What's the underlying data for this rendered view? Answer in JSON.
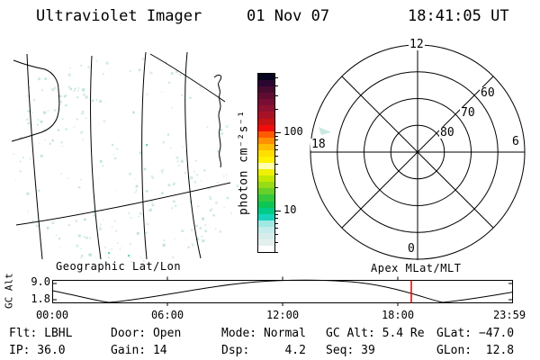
{
  "header": {
    "title": "Ultraviolet Imager",
    "date": "01 Nov 07",
    "time": "18:41:05 UT"
  },
  "map_panel": {
    "caption": "Geographic Lat/Lon",
    "content": "UV imager counts rendered in geographic coordinates with coastline and lat/lon graticule overlay; counts are near zero (pale cyan speckle)",
    "speckle_colors": [
      "#ddeee9",
      "#cfe9e2",
      "#c1e4da"
    ],
    "accent_speckle_color": "#6fd4a0"
  },
  "colorbar": {
    "label": "photon cm⁻²s⁻¹",
    "scale": "log",
    "colors": [
      "#06041e",
      "#2b0630",
      "#470a2e",
      "#600c31",
      "#780e33",
      "#8f1030",
      "#a81226",
      "#c61414",
      "#f20d0d",
      "#ff5a00",
      "#ff9000",
      "#ffbc00",
      "#ffdf00",
      "#fff101",
      "#ffffb0",
      "#eef000",
      "#c3e800",
      "#97dc14",
      "#66d028",
      "#35c83c",
      "#0cc654",
      "#00cc86",
      "#16d4bc",
      "#9fe8e4",
      "#c4ecea",
      "#d7edeb",
      "#e4f0ee",
      "#ffffff"
    ],
    "major_ticks": [
      {
        "value": 100,
        "label": "100"
      },
      {
        "value": 10,
        "label": "10"
      }
    ],
    "minor_ticks": [
      3,
      4,
      5,
      6,
      7,
      8,
      9,
      20,
      30,
      40,
      50,
      60,
      70,
      80,
      90,
      200,
      300,
      400,
      500
    ]
  },
  "polar_panel": {
    "caption": "Apex MLat/MLT",
    "clock_labels": [
      {
        "text": "12",
        "pos": "top"
      },
      {
        "text": "18",
        "pos": "left"
      },
      {
        "text": "6",
        "pos": "right"
      },
      {
        "text": "0",
        "pos": "bottom"
      }
    ],
    "ring_labels": [
      {
        "text": "60"
      },
      {
        "text": "70"
      },
      {
        "text": "80"
      }
    ],
    "rings_mlat": [
      80,
      70,
      60,
      50
    ],
    "mlt_spokes": [
      0,
      3,
      6,
      9,
      12,
      15,
      18,
      21
    ]
  },
  "timeline": {
    "ylabel": "GC Alt",
    "y_top_label": "9.0",
    "y_bottom_label": "1.8",
    "x_labels": [
      "00:00",
      "06:00",
      "12:00",
      "18:00",
      "23:59"
    ],
    "marker_time": "18:41:05",
    "marker_color": "#ff0000"
  },
  "status": {
    "rows": [
      [
        "Flt: LBHL",
        "Door: Open",
        "Mode: Normal",
        "GC Alt: 5.4 Re",
        "GLat: −47.0"
      ],
      [
        "IP: 36.0",
        "Gain: 14",
        "Dsp:     4.2",
        "Seq: 39",
        "GLon:  12.8"
      ]
    ]
  },
  "chart_data": [
    {
      "type": "heatmap",
      "title": "Geographic Lat/Lon",
      "colorbar_label": "photon cm⁻²s⁻¹",
      "color_scale": "log",
      "colorbar_tick_values": [
        10,
        100
      ],
      "description": "Auroral UV image (filter LBHL) over the South Atlantic; intensities near threshold so only pale speckle is visible; black graticule (4 meridians, 2 latitude arcs) and coastlines overlaid"
    },
    {
      "type": "line",
      "title": "GC Alt vs UT",
      "xlabel": "UT",
      "ylabel": "GC Alt",
      "ylim": [
        1.8,
        9.0
      ],
      "x_ticks": [
        "00:00",
        "06:00",
        "12:00",
        "18:00",
        "23:59"
      ],
      "x": [
        "00:00",
        "01:30",
        "02:50",
        "04:30",
        "06:00",
        "08:00",
        "10:00",
        "12:00",
        "13:00",
        "15:00",
        "17:00",
        "18:41",
        "20:25",
        "22:00",
        "23:59"
      ],
      "y": [
        5.0,
        3.2,
        1.8,
        3.4,
        4.9,
        6.7,
        8.1,
        8.8,
        9.0,
        8.6,
        7.1,
        5.4,
        1.8,
        2.9,
        4.7
      ],
      "marker": {
        "x": "18:41:05",
        "color": "#ff0000"
      },
      "legend": "none",
      "grid": false
    },
    {
      "type": "polar-grid",
      "title": "Apex MLat/MLT",
      "rings_mlat": [
        80,
        70,
        60,
        50
      ],
      "labeled_rings": [
        60,
        70,
        80
      ],
      "mlt_spokes_hours": [
        0,
        3,
        6,
        9,
        12,
        15,
        18,
        21
      ],
      "clock_labels": {
        "12": "top",
        "18": "left",
        "6": "right",
        "0": "bottom"
      },
      "data_points": "no auroral emission visible; single faint cyan fleck near 18-19 MLT at ~62 MLat"
    }
  ]
}
